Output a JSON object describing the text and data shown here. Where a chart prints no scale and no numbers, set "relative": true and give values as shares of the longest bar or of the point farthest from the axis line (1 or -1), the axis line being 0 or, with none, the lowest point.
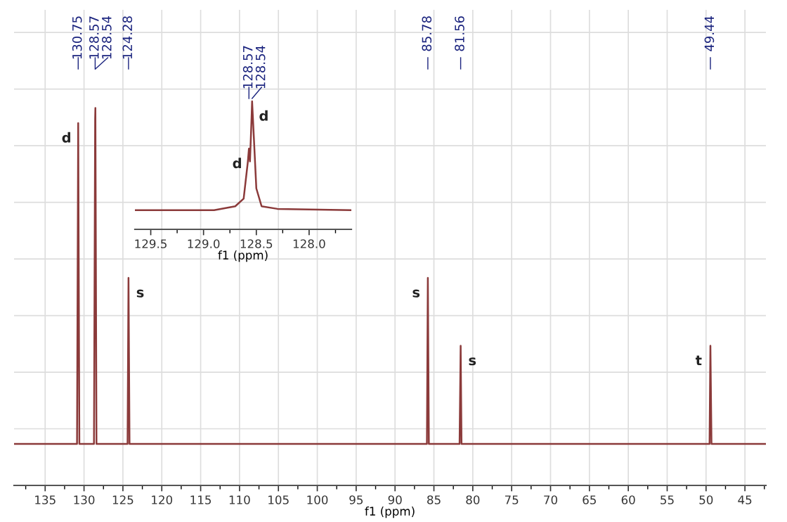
{
  "chart_data": [
    {
      "type": "line",
      "relative": true,
      "xlabel": "f1 (ppm)",
      "xlim": [
        139,
        42.3
      ],
      "xticks": [
        135,
        130,
        125,
        120,
        115,
        110,
        105,
        100,
        95,
        90,
        85,
        80,
        75,
        70,
        65,
        60,
        55,
        50,
        45
      ],
      "grid": true,
      "x": [
        139,
        130.9,
        130.75,
        130.6,
        128.72,
        128.57,
        128.54,
        128.4,
        124.4,
        124.28,
        124.15,
        85.9,
        85.78,
        85.65,
        81.7,
        81.56,
        81.45,
        49.55,
        49.44,
        49.3,
        42.3
      ],
      "series": [
        {
          "color": "#8b3a3a",
          "values": [
            0.11,
            0.11,
            0.96,
            0.11,
            0.11,
            0.97,
            1.0,
            0.11,
            0.11,
            0.55,
            0.11,
            0.11,
            0.55,
            0.11,
            0.11,
            0.37,
            0.11,
            0.11,
            0.37,
            0.11,
            0.11
          ]
        }
      ],
      "annotations": [
        {
          "text": "130.75",
          "x": 130.75
        },
        {
          "text": "128.57",
          "x": 128.57
        },
        {
          "text": "128.54",
          "x": 128.54
        },
        {
          "text": "124.28",
          "x": 124.28
        },
        {
          "text": "85.78",
          "x": 85.78
        },
        {
          "text": "81.56",
          "x": 81.56
        },
        {
          "text": "49.44",
          "x": 49.44
        },
        {
          "text": "d",
          "x": 130.75,
          "y": 0.96
        },
        {
          "text": "s",
          "x": 124.28,
          "y": 0.55
        },
        {
          "text": "s",
          "x": 85.78,
          "y": 0.55
        },
        {
          "text": "s",
          "x": 81.56,
          "y": 0.37
        },
        {
          "text": "t",
          "x": 49.44,
          "y": 0.37
        }
      ]
    },
    {
      "type": "line",
      "relative": true,
      "xlabel": "f1 (ppm)",
      "xlim": [
        129.65,
        127.6
      ],
      "xticks": [
        129.5,
        {
          "value": 129,
          "label": "129.0"
        },
        128.5,
        {
          "value": 128,
          "label": "128.0"
        }
      ],
      "x": [
        129.65,
        128.9,
        128.7,
        128.62,
        128.58,
        128.57,
        128.56,
        128.545,
        128.54,
        128.53,
        128.5,
        128.45,
        128.3,
        127.6
      ],
      "series": [
        {
          "color": "#8b3a3a",
          "values": [
            0.15,
            0.15,
            0.18,
            0.24,
            0.53,
            0.63,
            0.53,
            0.87,
            1.0,
            0.83,
            0.32,
            0.18,
            0.16,
            0.15
          ]
        }
      ],
      "annotations": [
        {
          "text": "128.57",
          "x": 128.57
        },
        {
          "text": "128.54",
          "x": 128.54
        },
        {
          "text": "d",
          "x": 128.57,
          "y": 0.63
        },
        {
          "text": "d",
          "x": 128.54,
          "y": 1.0
        }
      ]
    }
  ]
}
